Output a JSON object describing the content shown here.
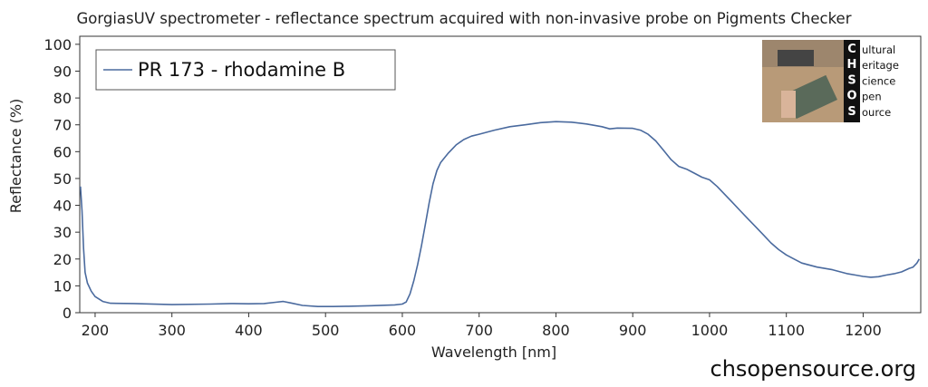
{
  "chart_data": {
    "type": "line",
    "title": "GorgiasUV spectrometer - reflectance spectrum acquired with non-invasive probe on Pigments Checker",
    "xlabel": "Wavelength [nm]",
    "ylabel": "Reflectance (%)",
    "xlim": [
      180,
      1275
    ],
    "ylim": [
      0,
      103
    ],
    "x_ticks": [
      200,
      300,
      400,
      500,
      600,
      700,
      800,
      900,
      1000,
      1100,
      1200
    ],
    "y_ticks": [
      0,
      10,
      20,
      30,
      40,
      50,
      60,
      70,
      80,
      90,
      100
    ],
    "grid": false,
    "legend_position": "top-left",
    "series": [
      {
        "name": "PR 173 - rhodamine B",
        "color": "#4a6a9e",
        "x": [
          181,
          183,
          185,
          187,
          190,
          195,
          200,
          210,
          220,
          250,
          300,
          350,
          380,
          400,
          420,
          435,
          445,
          455,
          470,
          490,
          510,
          530,
          560,
          590,
          600,
          605,
          610,
          615,
          620,
          625,
          630,
          635,
          640,
          645,
          650,
          660,
          670,
          680,
          690,
          700,
          720,
          740,
          760,
          780,
          800,
          820,
          840,
          860,
          870,
          880,
          900,
          910,
          920,
          930,
          940,
          950,
          960,
          970,
          980,
          990,
          1000,
          1010,
          1020,
          1030,
          1040,
          1050,
          1060,
          1070,
          1080,
          1090,
          1100,
          1110,
          1120,
          1140,
          1160,
          1180,
          1190,
          1200,
          1210,
          1220,
          1230,
          1240,
          1250,
          1260,
          1265,
          1270,
          1273
        ],
        "y": [
          47,
          38,
          24,
          15,
          11,
          8,
          6,
          4.2,
          3.5,
          3.4,
          3.0,
          3.2,
          3.4,
          3.3,
          3.4,
          3.9,
          4.2,
          3.6,
          2.7,
          2.3,
          2.3,
          2.4,
          2.6,
          2.9,
          3.2,
          4.0,
          7,
          12,
          18,
          25,
          33,
          41,
          48,
          53,
          56,
          59.5,
          62.5,
          64.5,
          65.8,
          66.5,
          68.0,
          69.3,
          70.0,
          70.8,
          71.2,
          71.0,
          70.3,
          69.3,
          68.5,
          68.8,
          68.7,
          68.0,
          66.5,
          64.0,
          60.5,
          57.0,
          54.5,
          53.5,
          52.0,
          50.5,
          49.5,
          47.0,
          44.0,
          41.0,
          38.0,
          35.0,
          32.0,
          29.0,
          26.0,
          23.5,
          21.5,
          20.0,
          18.5,
          17.0,
          16.0,
          14.5,
          14.0,
          13.5,
          13.2,
          13.4,
          14.0,
          14.5,
          15.2,
          16.5,
          17.0,
          18.5,
          20.0
        ]
      }
    ]
  },
  "logo": {
    "letters": [
      "C",
      "H",
      "S",
      "O",
      "S"
    ],
    "words": [
      "Cultural",
      "Heritage",
      "Science",
      "Open",
      "Source"
    ],
    "panel_color": "#111111"
  },
  "footer": {
    "site": "chsopensource.org"
  }
}
